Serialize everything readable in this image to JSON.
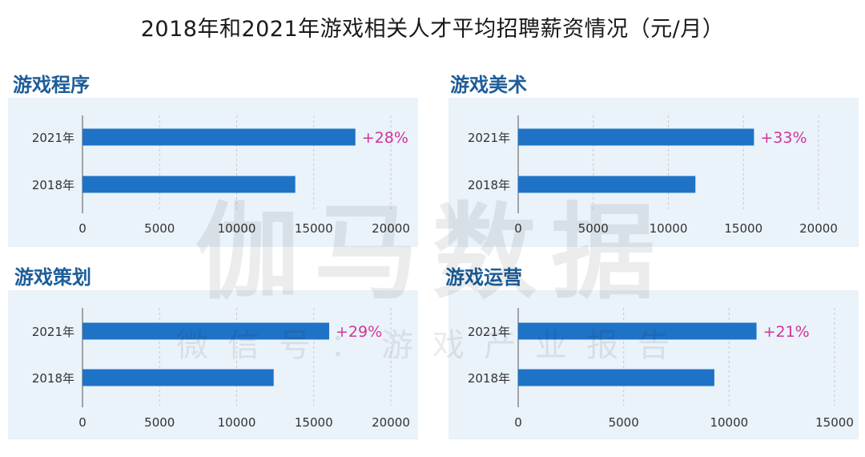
{
  "title": "2018年和2021年游戏相关人才平均招聘薪资情况（元/月）",
  "watermark": {
    "main": "伽马数据",
    "sub": "微信号：游戏产业报告"
  },
  "colors": {
    "bar": "#1f73c6",
    "panel_bg": "#eaf2fa",
    "pct_label": "#d3349a",
    "panel_title": "#1d5d99",
    "grid": "#c9c9c9"
  },
  "chart_data": [
    {
      "type": "bar",
      "orientation": "horizontal",
      "title": "游戏程序",
      "categories": [
        "2021年",
        "2018年"
      ],
      "values": [
        17700,
        13800
      ],
      "annotations": [
        "+28%",
        ""
      ],
      "xlim": [
        0,
        20000
      ],
      "xticks": [
        0,
        5000,
        10000,
        15000,
        20000
      ],
      "grid": true
    },
    {
      "type": "bar",
      "orientation": "horizontal",
      "title": "游戏美术",
      "categories": [
        "2021年",
        "2018年"
      ],
      "values": [
        15700,
        11800
      ],
      "annotations": [
        "+33%",
        ""
      ],
      "xlim": [
        0,
        20000
      ],
      "xticks": [
        0,
        5000,
        10000,
        15000,
        20000
      ],
      "grid": true
    },
    {
      "type": "bar",
      "orientation": "horizontal",
      "title": "游戏策划",
      "categories": [
        "2021年",
        "2018年"
      ],
      "values": [
        16000,
        12400
      ],
      "annotations": [
        "+29%",
        ""
      ],
      "xlim": [
        0,
        20000
      ],
      "xticks": [
        0,
        5000,
        10000,
        15000,
        20000
      ],
      "grid": true
    },
    {
      "type": "bar",
      "orientation": "horizontal",
      "title": "游戏运营",
      "categories": [
        "2021年",
        "2018年"
      ],
      "values": [
        11300,
        9300
      ],
      "annotations": [
        "+21%",
        ""
      ],
      "xlim": [
        0,
        15000
      ],
      "xticks": [
        0,
        5000,
        10000,
        15000
      ],
      "grid": true
    }
  ]
}
